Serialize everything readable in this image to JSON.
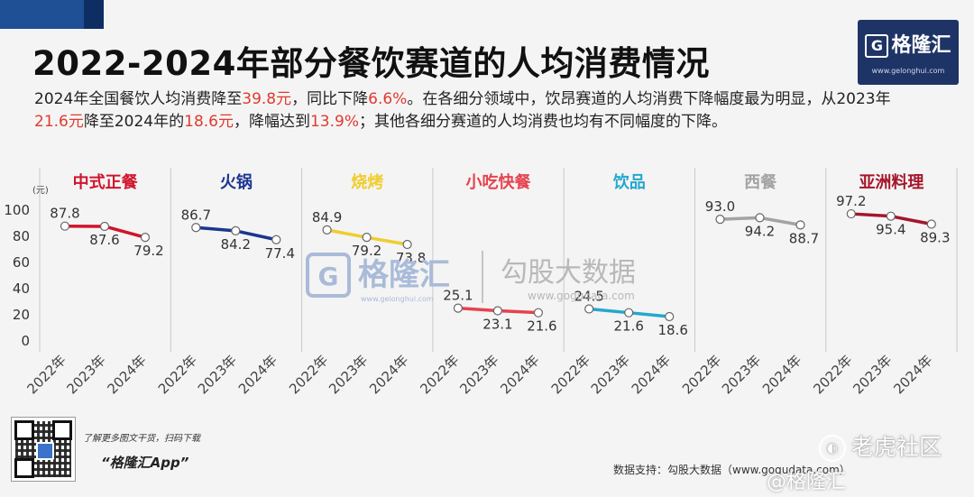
{
  "header": {
    "title": "2022-2024年部分餐饮赛道的人均消费情况",
    "desc_parts": [
      {
        "t": "2024年全国餐饮人均消费降至",
        "hl": false
      },
      {
        "t": "39.8元",
        "hl": true
      },
      {
        "t": "，同比下降",
        "hl": false
      },
      {
        "t": "6.6%",
        "hl": true
      },
      {
        "t": "。在各细分领域中，饮昂赛道的人均消费下降幅度最为明显，从2023年",
        "hl": false
      },
      {
        "t": "21.6元",
        "hl": true
      },
      {
        "t": "降至2024年的",
        "hl": false
      },
      {
        "t": "18.6元",
        "hl": true
      },
      {
        "t": "，降幅达到",
        "hl": false
      },
      {
        "t": "13.9%",
        "hl": true
      },
      {
        "t": "；其他各细分赛道的人均消费也均有不同幅度的下降。",
        "hl": false
      }
    ]
  },
  "logo": {
    "glyph": "G",
    "name": "格隆汇",
    "url": "www.gelonghui.com"
  },
  "chart_data": {
    "type": "line",
    "unit_label": "(元)",
    "ylim": [
      0,
      100
    ],
    "y_ticks": [
      0,
      20,
      40,
      60,
      80,
      100
    ],
    "panels": [
      {
        "name": "中式正餐",
        "color": "#d0142c",
        "categories": [
          "2022年",
          "2023年",
          "2024年"
        ],
        "values": [
          87.8,
          87.6,
          79.2
        ],
        "labels": [
          "87.8",
          "87.6",
          "79.2"
        ]
      },
      {
        "name": "火锅",
        "color": "#1b3591",
        "categories": [
          "2022年",
          "2023年",
          "2024年"
        ],
        "values": [
          86.7,
          84.2,
          77.4
        ],
        "labels": [
          "86.7",
          "84.2",
          "77.4"
        ]
      },
      {
        "name": "烧烤",
        "color": "#f0cd2e",
        "categories": [
          "2022年",
          "2023年",
          "2024年"
        ],
        "values": [
          84.9,
          79.2,
          73.8
        ],
        "labels": [
          "84.9",
          "79.2",
          "73.8"
        ]
      },
      {
        "name": "小吃快餐",
        "color": "#e5434e",
        "categories": [
          "2022年",
          "2023年",
          "2024年"
        ],
        "values": [
          25.1,
          23.1,
          21.6
        ],
        "labels": [
          "25.1",
          "23.1",
          "21.6"
        ]
      },
      {
        "name": "饮品",
        "color": "#25a7cf",
        "categories": [
          "2022年",
          "2023年",
          "2024年"
        ],
        "values": [
          24.5,
          21.6,
          18.6
        ],
        "labels": [
          "24.5",
          "21.6",
          "18.6"
        ]
      },
      {
        "name": "西餐",
        "color": "#a3a3a3",
        "categories": [
          "2022年",
          "2023年",
          "2024年"
        ],
        "values": [
          93.0,
          94.2,
          88.7
        ],
        "labels": [
          "93.0",
          "94.2",
          "88.7"
        ]
      },
      {
        "name": "亚洲料理",
        "color": "#a4162a",
        "categories": [
          "2022年",
          "2023年",
          "2024年"
        ],
        "values": [
          97.2,
          95.4,
          89.3
        ],
        "labels": [
          "97.2",
          "95.4",
          "89.3"
        ]
      }
    ]
  },
  "watermark": {
    "brand": "格隆汇",
    "brand_url": "www.gelonghui.com",
    "gogu": "勾股大数据",
    "gogu_url": "www.gogudata.com"
  },
  "footer": {
    "qr_caption": "了解更多图文干货，扫码下载",
    "app_name": "“格隆汇App”",
    "source": "数据支持：勾股大数据（www.gogudata.com）",
    "wm_tiger": "老虎社区",
    "wm_bottom": "@格隆汇"
  }
}
